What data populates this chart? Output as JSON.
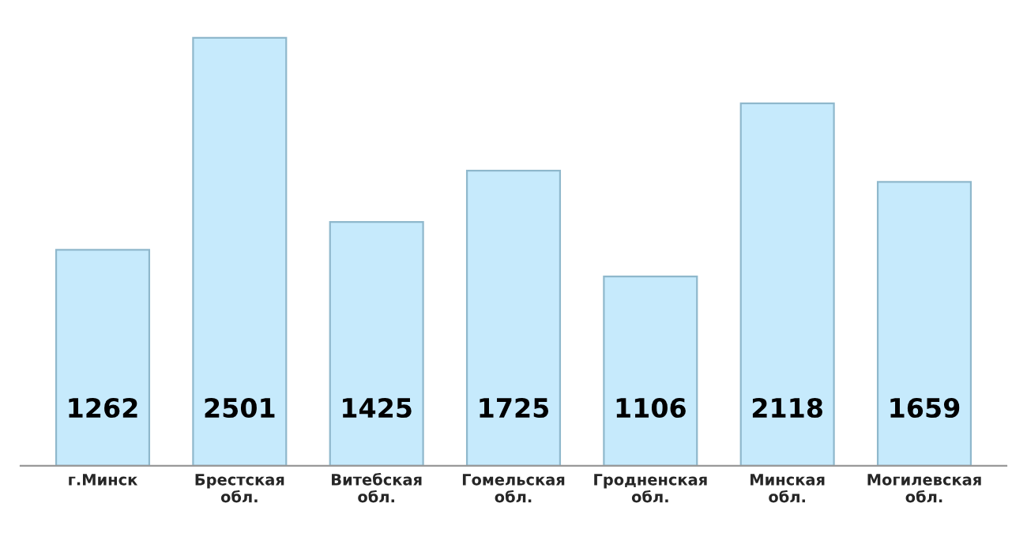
{
  "chart_data": {
    "type": "bar",
    "categories": [
      "г.Минск",
      "Брестская\nобл.",
      "Витебская\nобл.",
      "Гомельская\nобл.",
      "Гродненская\nобл.",
      "Минская\nобл.",
      "Могилевская\nобл."
    ],
    "values": [
      1262,
      2501,
      1425,
      1725,
      1106,
      2118,
      1659
    ],
    "color": "#c6eafc",
    "data_labels": true,
    "tick_labels": "x",
    "grid": false,
    "legend": false
  }
}
